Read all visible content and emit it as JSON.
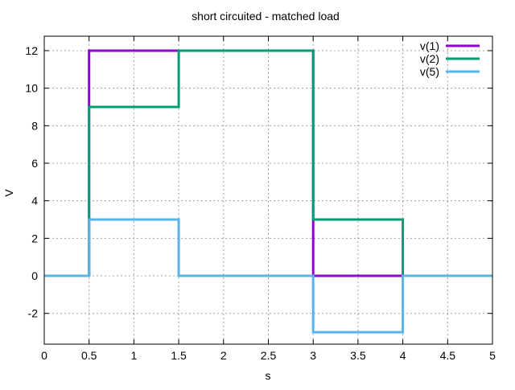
{
  "chart_data": {
    "type": "line",
    "title": "short circuited - matched load",
    "xlabel": "s",
    "ylabel": "V",
    "xlim": [
      0,
      5
    ],
    "ylim": [
      -3.64,
      12.77
    ],
    "xticks": [
      0,
      0.5,
      1,
      1.5,
      2,
      2.5,
      3,
      3.5,
      4,
      4.5,
      5
    ],
    "xtick_labels": [
      "0",
      "0.5",
      "1",
      "1.5",
      "2",
      "2.5",
      "3",
      "3.5",
      "4",
      "4.5",
      "5"
    ],
    "yticks": [
      -2,
      0,
      2,
      4,
      6,
      8,
      10,
      12
    ],
    "ytick_labels": [
      "-2",
      "0",
      "2",
      "4",
      "6",
      "8",
      "10",
      "12"
    ],
    "grid": true,
    "legend_position": "top-right",
    "step": true,
    "series": [
      {
        "name": "v(1)",
        "color": "#9400d3",
        "x": [
          0,
          0.5,
          0.5,
          1.5,
          1.5,
          3,
          3,
          4,
          4,
          5
        ],
        "y": [
          0,
          0,
          12,
          12,
          12,
          12,
          0,
          0,
          0,
          0
        ]
      },
      {
        "name": "v(2)",
        "color": "#009e73",
        "x": [
          0,
          0.5,
          0.5,
          1.5,
          1.5,
          3,
          3,
          4,
          4,
          5
        ],
        "y": [
          0,
          0,
          9,
          9,
          12,
          12,
          3,
          3,
          0,
          0
        ]
      },
      {
        "name": "v(5)",
        "color": "#56b4e9",
        "x": [
          0,
          0.5,
          0.5,
          1.5,
          1.5,
          3,
          3,
          4,
          4,
          5
        ],
        "y": [
          0,
          0,
          3,
          3,
          0,
          0,
          -3,
          -3,
          0,
          0
        ]
      }
    ]
  }
}
